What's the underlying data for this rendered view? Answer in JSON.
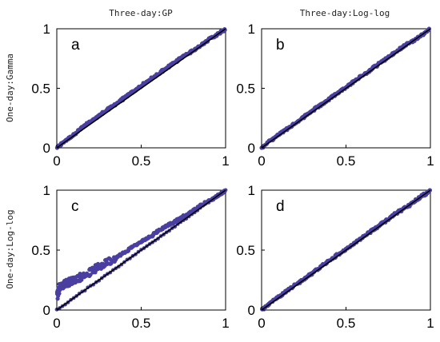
{
  "figure": {
    "col_titles": [
      "Three-day:GP",
      "Three-day:Log-log"
    ],
    "row_titles": [
      "One-day:Gamma",
      "One-day:Log-log"
    ]
  },
  "colors": {
    "points": "#4a3fa0",
    "reference_line": "#000000",
    "axes": "#000000"
  },
  "chart_data": [
    {
      "type": "scatter",
      "panel": "a",
      "title": "",
      "xlabel": "",
      "ylabel": "",
      "xlim": [
        0,
        1
      ],
      "ylim": [
        0,
        1
      ],
      "xticks": [
        "0",
        "0.5",
        "1"
      ],
      "yticks": [
        "0",
        "0.5",
        "1"
      ],
      "grid": false,
      "reference_line": {
        "from": [
          0,
          0
        ],
        "to": [
          1,
          1
        ]
      },
      "series": [
        {
          "x": [
            0,
            0.05,
            0.1,
            0.15,
            0.2,
            0.25,
            0.3,
            0.35,
            0.4,
            0.45,
            0.5,
            0.55,
            0.6,
            0.65,
            0.7,
            0.75,
            0.8,
            0.85,
            0.9,
            0.95,
            1
          ],
          "y": [
            0,
            0.06,
            0.11,
            0.17,
            0.22,
            0.27,
            0.32,
            0.37,
            0.42,
            0.47,
            0.52,
            0.57,
            0.62,
            0.67,
            0.72,
            0.77,
            0.81,
            0.86,
            0.91,
            0.95,
            1
          ]
        }
      ]
    },
    {
      "type": "scatter",
      "panel": "b",
      "title": "",
      "xlabel": "",
      "ylabel": "",
      "xlim": [
        0,
        1
      ],
      "ylim": [
        0,
        1
      ],
      "xticks": [
        "0",
        "0.5",
        "1"
      ],
      "yticks": [
        "0",
        "0.5",
        "1"
      ],
      "grid": false,
      "reference_line": {
        "from": [
          0,
          0
        ],
        "to": [
          1,
          1
        ]
      },
      "series": [
        {
          "x": [
            0,
            0.05,
            0.1,
            0.15,
            0.2,
            0.25,
            0.3,
            0.35,
            0.4,
            0.45,
            0.5,
            0.55,
            0.6,
            0.65,
            0.7,
            0.75,
            0.8,
            0.85,
            0.9,
            0.95,
            1
          ],
          "y": [
            0,
            0.06,
            0.11,
            0.16,
            0.21,
            0.26,
            0.31,
            0.36,
            0.41,
            0.46,
            0.51,
            0.56,
            0.61,
            0.66,
            0.71,
            0.76,
            0.81,
            0.86,
            0.9,
            0.95,
            1
          ]
        }
      ]
    },
    {
      "type": "scatter",
      "panel": "c",
      "title": "",
      "xlabel": "",
      "ylabel": "",
      "xlim": [
        0,
        1
      ],
      "ylim": [
        0,
        1
      ],
      "xticks": [
        "0",
        "0.5",
        "1"
      ],
      "yticks": [
        "0",
        "0.5",
        "1"
      ],
      "grid": false,
      "reference_line": {
        "from": [
          0,
          0
        ],
        "to": [
          1,
          1
        ]
      },
      "series": [
        {
          "x": [
            0,
            0.02,
            0.05,
            0.08,
            0.1,
            0.15,
            0.2,
            0.25,
            0.3,
            0.35,
            0.4,
            0.45,
            0.5,
            0.55,
            0.6,
            0.65,
            0.7,
            0.75,
            0.8,
            0.85,
            0.9,
            0.95,
            1
          ],
          "y": [
            0.12,
            0.2,
            0.22,
            0.24,
            0.25,
            0.28,
            0.32,
            0.36,
            0.4,
            0.44,
            0.48,
            0.53,
            0.57,
            0.61,
            0.66,
            0.7,
            0.74,
            0.78,
            0.82,
            0.87,
            0.91,
            0.95,
            1
          ]
        }
      ]
    },
    {
      "type": "scatter",
      "panel": "d",
      "title": "",
      "xlabel": "",
      "ylabel": "",
      "xlim": [
        0,
        1
      ],
      "ylim": [
        0,
        1
      ],
      "xticks": [
        "0",
        "0.5",
        "1"
      ],
      "yticks": [
        "0",
        "0.5",
        "1"
      ],
      "grid": false,
      "reference_line": {
        "from": [
          0,
          0
        ],
        "to": [
          1,
          1
        ]
      },
      "series": [
        {
          "x": [
            0,
            0.05,
            0.1,
            0.15,
            0.2,
            0.25,
            0.3,
            0.35,
            0.4,
            0.45,
            0.5,
            0.55,
            0.6,
            0.65,
            0.7,
            0.75,
            0.8,
            0.85,
            0.9,
            0.95,
            1
          ],
          "y": [
            0,
            0.06,
            0.11,
            0.16,
            0.21,
            0.26,
            0.31,
            0.36,
            0.41,
            0.46,
            0.51,
            0.56,
            0.61,
            0.66,
            0.71,
            0.76,
            0.81,
            0.85,
            0.9,
            0.95,
            1
          ]
        }
      ]
    }
  ]
}
